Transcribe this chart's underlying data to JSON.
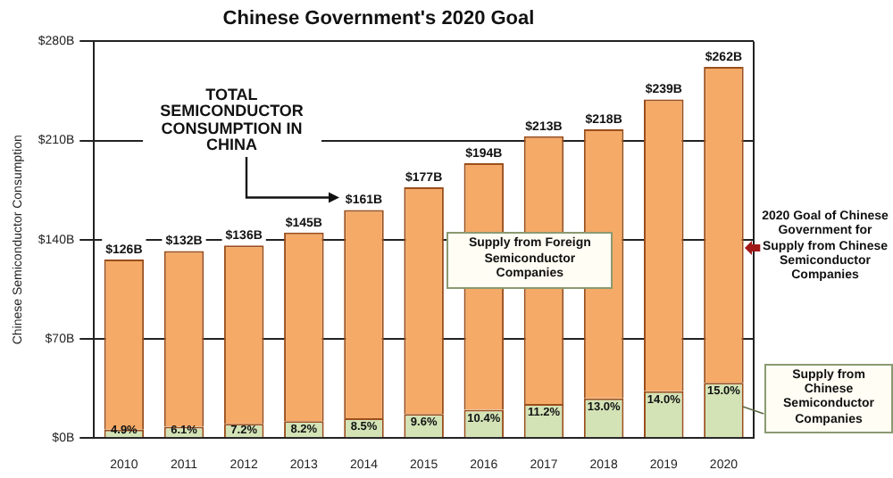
{
  "chart_data": {
    "type": "bar",
    "title": "Chinese Government's 2020 Goal",
    "ylabel": "Chinese Semiconductor Consumption",
    "categories": [
      "2010",
      "2011",
      "2012",
      "2013",
      "2014",
      "2015",
      "2016",
      "2017",
      "2018",
      "2019",
      "2020"
    ],
    "stacked": true,
    "series": [
      {
        "color": "#d3e3b6",
        "values": [
          6,
          8,
          10,
          12,
          14,
          17,
          20,
          24,
          28,
          33,
          39
        ]
      },
      {
        "color": "#f5aa68",
        "values": [
          120,
          124,
          126,
          133,
          147,
          160,
          174,
          189,
          190,
          206,
          223
        ]
      }
    ],
    "totals": [
      "$126B",
      "$132B",
      "$136B",
      "$145B",
      "$161B",
      "$177B",
      "$194B",
      "$213B",
      "$218B",
      "$239B",
      "$262B"
    ],
    "ylim": [
      0,
      280
    ],
    "yticks": [
      {
        "value": 0,
        "label": "$0B"
      },
      {
        "value": 70,
        "label": "$70B"
      },
      {
        "value": 140,
        "label": "$140B"
      },
      {
        "value": 210,
        "label": "$210B"
      },
      {
        "value": 280,
        "label": "$280B"
      }
    ],
    "grid": "y",
    "legend": false,
    "annotations": [
      "TOTAL SEMICONDUCTOR CONSUMPTION IN CHINA",
      "Supply from Foreign Semiconductor Companies",
      "2020 Goal of Chinese Government for Supply from Chinese Semiconductor Companies",
      "Supply from Chinese Semiconductor Companies",
      {
        "text": "4.9%",
        "x": "2010",
        "y": 6
      },
      {
        "text": "6.1%",
        "x": "2011",
        "y": 8
      },
      {
        "text": "7.2%",
        "x": "2012",
        "y": 10
      },
      {
        "text": "8.2%",
        "x": "2013",
        "y": 12
      },
      {
        "text": "8.5%",
        "x": "2014",
        "y": 14
      },
      {
        "text": "9.6%",
        "x": "2015",
        "y": 17
      },
      {
        "text": "10.4%",
        "x": "2016",
        "y": 20
      },
      {
        "text": "11.2%",
        "x": "2017",
        "y": 24
      },
      {
        "text": "13.0%",
        "x": "2018",
        "y": 28
      },
      {
        "text": "14.0%",
        "x": "2019",
        "y": 33
      },
      {
        "text": "15.0%",
        "x": "2020",
        "y": 39
      }
    ]
  }
}
